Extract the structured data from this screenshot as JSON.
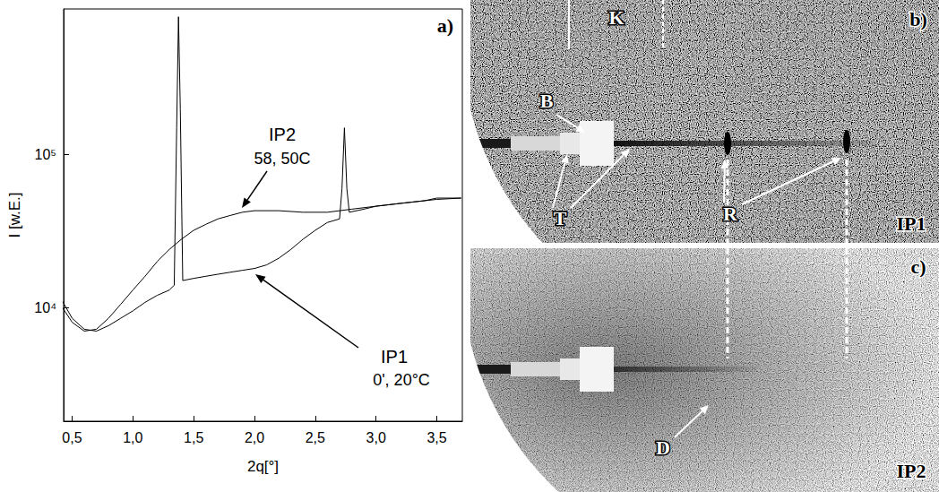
{
  "chart_data": {
    "type": "line",
    "panel_label": "a)",
    "x_label": "2q[°]",
    "y_label": "I [w.E.]",
    "log": "y",
    "grid": false,
    "xlim": [
      0.43,
      3.71
    ],
    "xticks": [
      {
        "value": 0.5,
        "label": "0,5"
      },
      {
        "value": 1.0,
        "label": "1,0"
      },
      {
        "value": 1.5,
        "label": "1,5"
      },
      {
        "value": 2.0,
        "label": "2,0"
      },
      {
        "value": 2.5,
        "label": "2,5"
      },
      {
        "value": 3.0,
        "label": "3,0"
      },
      {
        "value": 3.5,
        "label": "3,5"
      }
    ],
    "ylim": [
      1800,
      900000
    ],
    "yticks": [
      {
        "value": 10000,
        "label": "10⁴"
      },
      {
        "value": 100000,
        "label": "10⁵"
      }
    ],
    "series": [
      {
        "name": "IP1",
        "conditions": "0', 20°C",
        "color": "#000000",
        "x": [
          0.42,
          0.5,
          0.6,
          0.7,
          0.8,
          0.9,
          1.0,
          1.1,
          1.2,
          1.3,
          1.34,
          1.36,
          1.375,
          1.39,
          1.41,
          1.5,
          1.6,
          1.7,
          1.8,
          1.9,
          2.0,
          2.1,
          2.2,
          2.3,
          2.4,
          2.5,
          2.6,
          2.7,
          2.72,
          2.74,
          2.76,
          2.78,
          2.9,
          3.0,
          3.2,
          3.4,
          3.5,
          3.7
        ],
        "values": [
          11000,
          8500,
          7200,
          7000,
          7600,
          8500,
          9500,
          10800,
          12000,
          13000,
          14000,
          150000,
          800000,
          200000,
          15000,
          15500,
          16000,
          16500,
          17000,
          17500,
          18000,
          19000,
          21000,
          24000,
          28000,
          32000,
          36000,
          38000,
          60000,
          150000,
          60000,
          42000,
          44000,
          46000,
          48000,
          50000,
          52000,
          52000
        ]
      },
      {
        "name": "IP2",
        "conditions": "58, 50C",
        "color": "#000000",
        "x": [
          0.42,
          0.5,
          0.6,
          0.7,
          0.8,
          0.9,
          1.0,
          1.1,
          1.2,
          1.3,
          1.4,
          1.5,
          1.6,
          1.7,
          1.8,
          1.9,
          2.0,
          2.2,
          2.4,
          2.6,
          2.8,
          3.0,
          3.2,
          3.4,
          3.5,
          3.7
        ],
        "values": [
          10000,
          8000,
          7000,
          7200,
          8500,
          10500,
          13000,
          16000,
          20000,
          24000,
          28000,
          32000,
          35000,
          38000,
          40000,
          42000,
          43000,
          43000,
          42000,
          42000,
          44000,
          46000,
          48000,
          50000,
          51000,
          52000
        ]
      }
    ]
  },
  "images": [
    {
      "panel_label": "b)",
      "name": "IP1",
      "labels": {
        "beam_stop": "B",
        "streak": "T",
        "reflexes": "R",
        "capillary": "K"
      }
    },
    {
      "panel_label": "c)",
      "name": "IP2",
      "labels": {
        "diffuse": "D"
      }
    }
  ]
}
